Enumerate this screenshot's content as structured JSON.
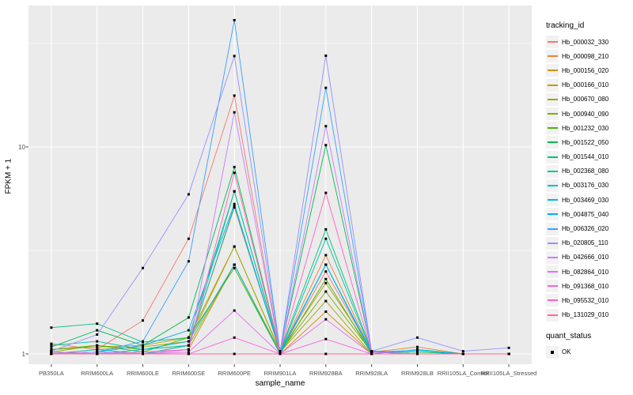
{
  "figure": {
    "y_axis_title": "FPKM + 1",
    "x_axis_title": "sample_name",
    "panel_background": "#EBEBEB",
    "gridline_color": "#FFFFFF",
    "tick_color": "#333333",
    "tick_text_color": "#4D4D4D",
    "point_color": "#000000",
    "y_ticks": [
      {
        "label": "10",
        "value": 10
      },
      {
        "label": "1",
        "value": 1
      }
    ]
  },
  "legend": {
    "tracking_title": "tracking_id",
    "quant_title": "quant_status",
    "quant_items": [
      {
        "label": "OK",
        "shape": "filled-square",
        "color": "#000000"
      }
    ]
  },
  "chart_data": {
    "type": "line",
    "title": "",
    "xlabel": "sample_name",
    "ylabel": "FPKM + 1",
    "y_scale": "log10",
    "ylim": [
      0.9,
      48
    ],
    "y_major_breaks": [
      1,
      10
    ],
    "y_minor_breaks": [
      3.162,
      31.62
    ],
    "grid": "on",
    "legend_position": "right",
    "point_shape": "filled-square",
    "categories": [
      "PB350LA",
      "RRIM600LA",
      "RRIM600LE",
      "RRIM600SE",
      "RRIM600PE",
      "RRIM901LA",
      "RRIM928BA",
      "RRIM928LA",
      "RRIM928LB",
      "RRII105LA_Control",
      "RRII105LA_Stressed"
    ],
    "series": [
      {
        "name": "Hb_000032_330",
        "color": "#F8766D",
        "values": [
          1.12,
          1.05,
          1.45,
          3.6,
          17.7,
          1.02,
          2.5,
          1.02,
          1.0,
          1.0,
          1.0
        ]
      },
      {
        "name": "Hb_000098_210",
        "color": "#EA8331",
        "values": [
          1.0,
          1.02,
          1.0,
          1.1,
          5.1,
          1.02,
          3.0,
          1.02,
          1.08,
          1.0,
          1.0
        ]
      },
      {
        "name": "Hb_000156_020",
        "color": "#D89000",
        "values": [
          1.02,
          1.0,
          1.0,
          1.05,
          2.7,
          1.0,
          1.6,
          1.0,
          1.0,
          1.0,
          1.0
        ]
      },
      {
        "name": "Hb_000166_010",
        "color": "#C09B00",
        "values": [
          1.05,
          1.08,
          1.1,
          1.2,
          3.3,
          1.03,
          2.2,
          1.03,
          1.0,
          1.0,
          1.0
        ]
      },
      {
        "name": "Hb_000670_080",
        "color": "#A3A500",
        "values": [
          1.0,
          1.05,
          1.08,
          1.15,
          3.3,
          1.02,
          1.8,
          1.0,
          1.0,
          1.0,
          1.0
        ]
      },
      {
        "name": "Hb_000940_090",
        "color": "#7CAE00",
        "values": [
          1.02,
          1.1,
          1.05,
          1.1,
          2.7,
          1.02,
          2.0,
          1.02,
          1.0,
          1.0,
          1.0
        ]
      },
      {
        "name": "Hb_001232_030",
        "color": "#49B500",
        "values": [
          1.05,
          1.1,
          1.02,
          1.2,
          2.6,
          1.0,
          2.3,
          1.0,
          1.0,
          1.0,
          1.0
        ]
      },
      {
        "name": "Hb_001522_050",
        "color": "#00BB4E",
        "values": [
          1.08,
          1.3,
          1.1,
          1.5,
          8.0,
          1.03,
          10.2,
          1.03,
          1.02,
          1.0,
          1.0
        ]
      },
      {
        "name": "Hb_001544_010",
        "color": "#00BF7D",
        "values": [
          1.34,
          1.4,
          1.14,
          1.2,
          6.1,
          1.03,
          4.0,
          1.03,
          1.0,
          1.0,
          1.0
        ]
      },
      {
        "name": "Hb_002368_080",
        "color": "#00C1A3",
        "values": [
          1.1,
          1.15,
          1.05,
          1.1,
          6.1,
          1.02,
          3.6,
          1.02,
          1.0,
          1.0,
          1.0
        ]
      },
      {
        "name": "Hb_003176_030",
        "color": "#00C0C2",
        "values": [
          1.0,
          1.05,
          1.0,
          1.1,
          5.2,
          1.02,
          2.7,
          1.0,
          1.05,
          1.0,
          1.0
        ]
      },
      {
        "name": "Hb_003469_030",
        "color": "#00BADE",
        "values": [
          1.02,
          1.0,
          1.05,
          1.15,
          2.7,
          1.0,
          2.7,
          1.0,
          1.0,
          1.0,
          1.0
        ]
      },
      {
        "name": "Hb_004875_040",
        "color": "#00B0F6",
        "values": [
          1.0,
          1.02,
          1.1,
          1.3,
          5.3,
          1.02,
          2.7,
          1.02,
          1.04,
          1.0,
          1.0
        ]
      },
      {
        "name": "Hb_006326_020",
        "color": "#35A2FF",
        "values": [
          1.0,
          1.02,
          1.15,
          2.8,
          41.0,
          1.03,
          19.3,
          1.03,
          1.0,
          1.0,
          1.0
        ]
      },
      {
        "name": "Hb_020805_110",
        "color": "#9590FF",
        "values": [
          1.03,
          1.24,
          2.6,
          5.9,
          27.5,
          1.03,
          27.6,
          1.03,
          1.2,
          1.03,
          1.07
        ]
      },
      {
        "name": "Hb_042666_010",
        "color": "#C77CFF",
        "values": [
          1.0,
          1.02,
          1.0,
          1.05,
          14.7,
          1.02,
          12.6,
          1.02,
          1.0,
          1.0,
          1.0
        ]
      },
      {
        "name": "Hb_082864_010",
        "color": "#E76BF3",
        "values": [
          1.0,
          1.0,
          1.0,
          1.02,
          1.62,
          1.0,
          1.47,
          1.0,
          1.0,
          1.0,
          1.0
        ]
      },
      {
        "name": "Hb_091368_010",
        "color": "#FA62DB",
        "values": [
          1.0,
          1.0,
          1.0,
          1.0,
          1.2,
          1.0,
          1.18,
          1.0,
          1.0,
          1.0,
          1.0
        ]
      },
      {
        "name": "Hb_095532_010",
        "color": "#FF61C3",
        "values": [
          1.02,
          1.0,
          1.02,
          1.05,
          7.5,
          1.02,
          6.0,
          1.02,
          1.0,
          1.0,
          1.0
        ]
      },
      {
        "name": "Hb_131029_010",
        "color": "#FF689E",
        "values": [
          1.0,
          1.0,
          1.0,
          1.0,
          1.0,
          1.0,
          1.0,
          1.0,
          1.0,
          1.0,
          1.0
        ]
      }
    ],
    "point_legend": {
      "title": "quant_status",
      "label": "OK"
    }
  }
}
